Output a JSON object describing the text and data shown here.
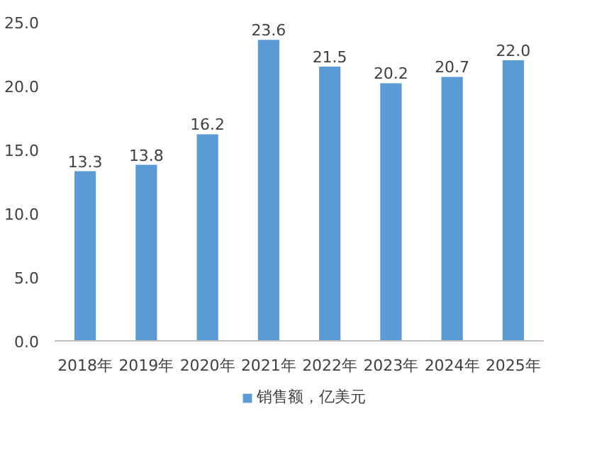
{
  "chart_data": {
    "type": "bar",
    "categories": [
      "2018年",
      "2019年",
      "2020年",
      "2021年",
      "2022年",
      "2023年",
      "2024年",
      "2025年"
    ],
    "series": [
      {
        "name": "销售额，亿美元",
        "color": "#5b9bd5",
        "values": [
          13.3,
          13.8,
          16.2,
          23.6,
          21.5,
          20.2,
          20.7,
          22.0
        ]
      }
    ],
    "ylim": [
      0,
      25
    ],
    "yticks": [
      {
        "value": 0,
        "label": "0.0"
      },
      {
        "value": 5,
        "label": "5.0"
      },
      {
        "value": 10,
        "label": "10.0"
      },
      {
        "value": 15,
        "label": "15.0"
      },
      {
        "value": 20,
        "label": "20.0"
      },
      {
        "value": 25,
        "label": "25.0"
      }
    ],
    "value_labels": [
      "13.3",
      "13.8",
      "16.2",
      "23.6",
      "21.5",
      "20.2",
      "20.7",
      "22.0"
    ],
    "grid": false,
    "legend": "bottom"
  }
}
